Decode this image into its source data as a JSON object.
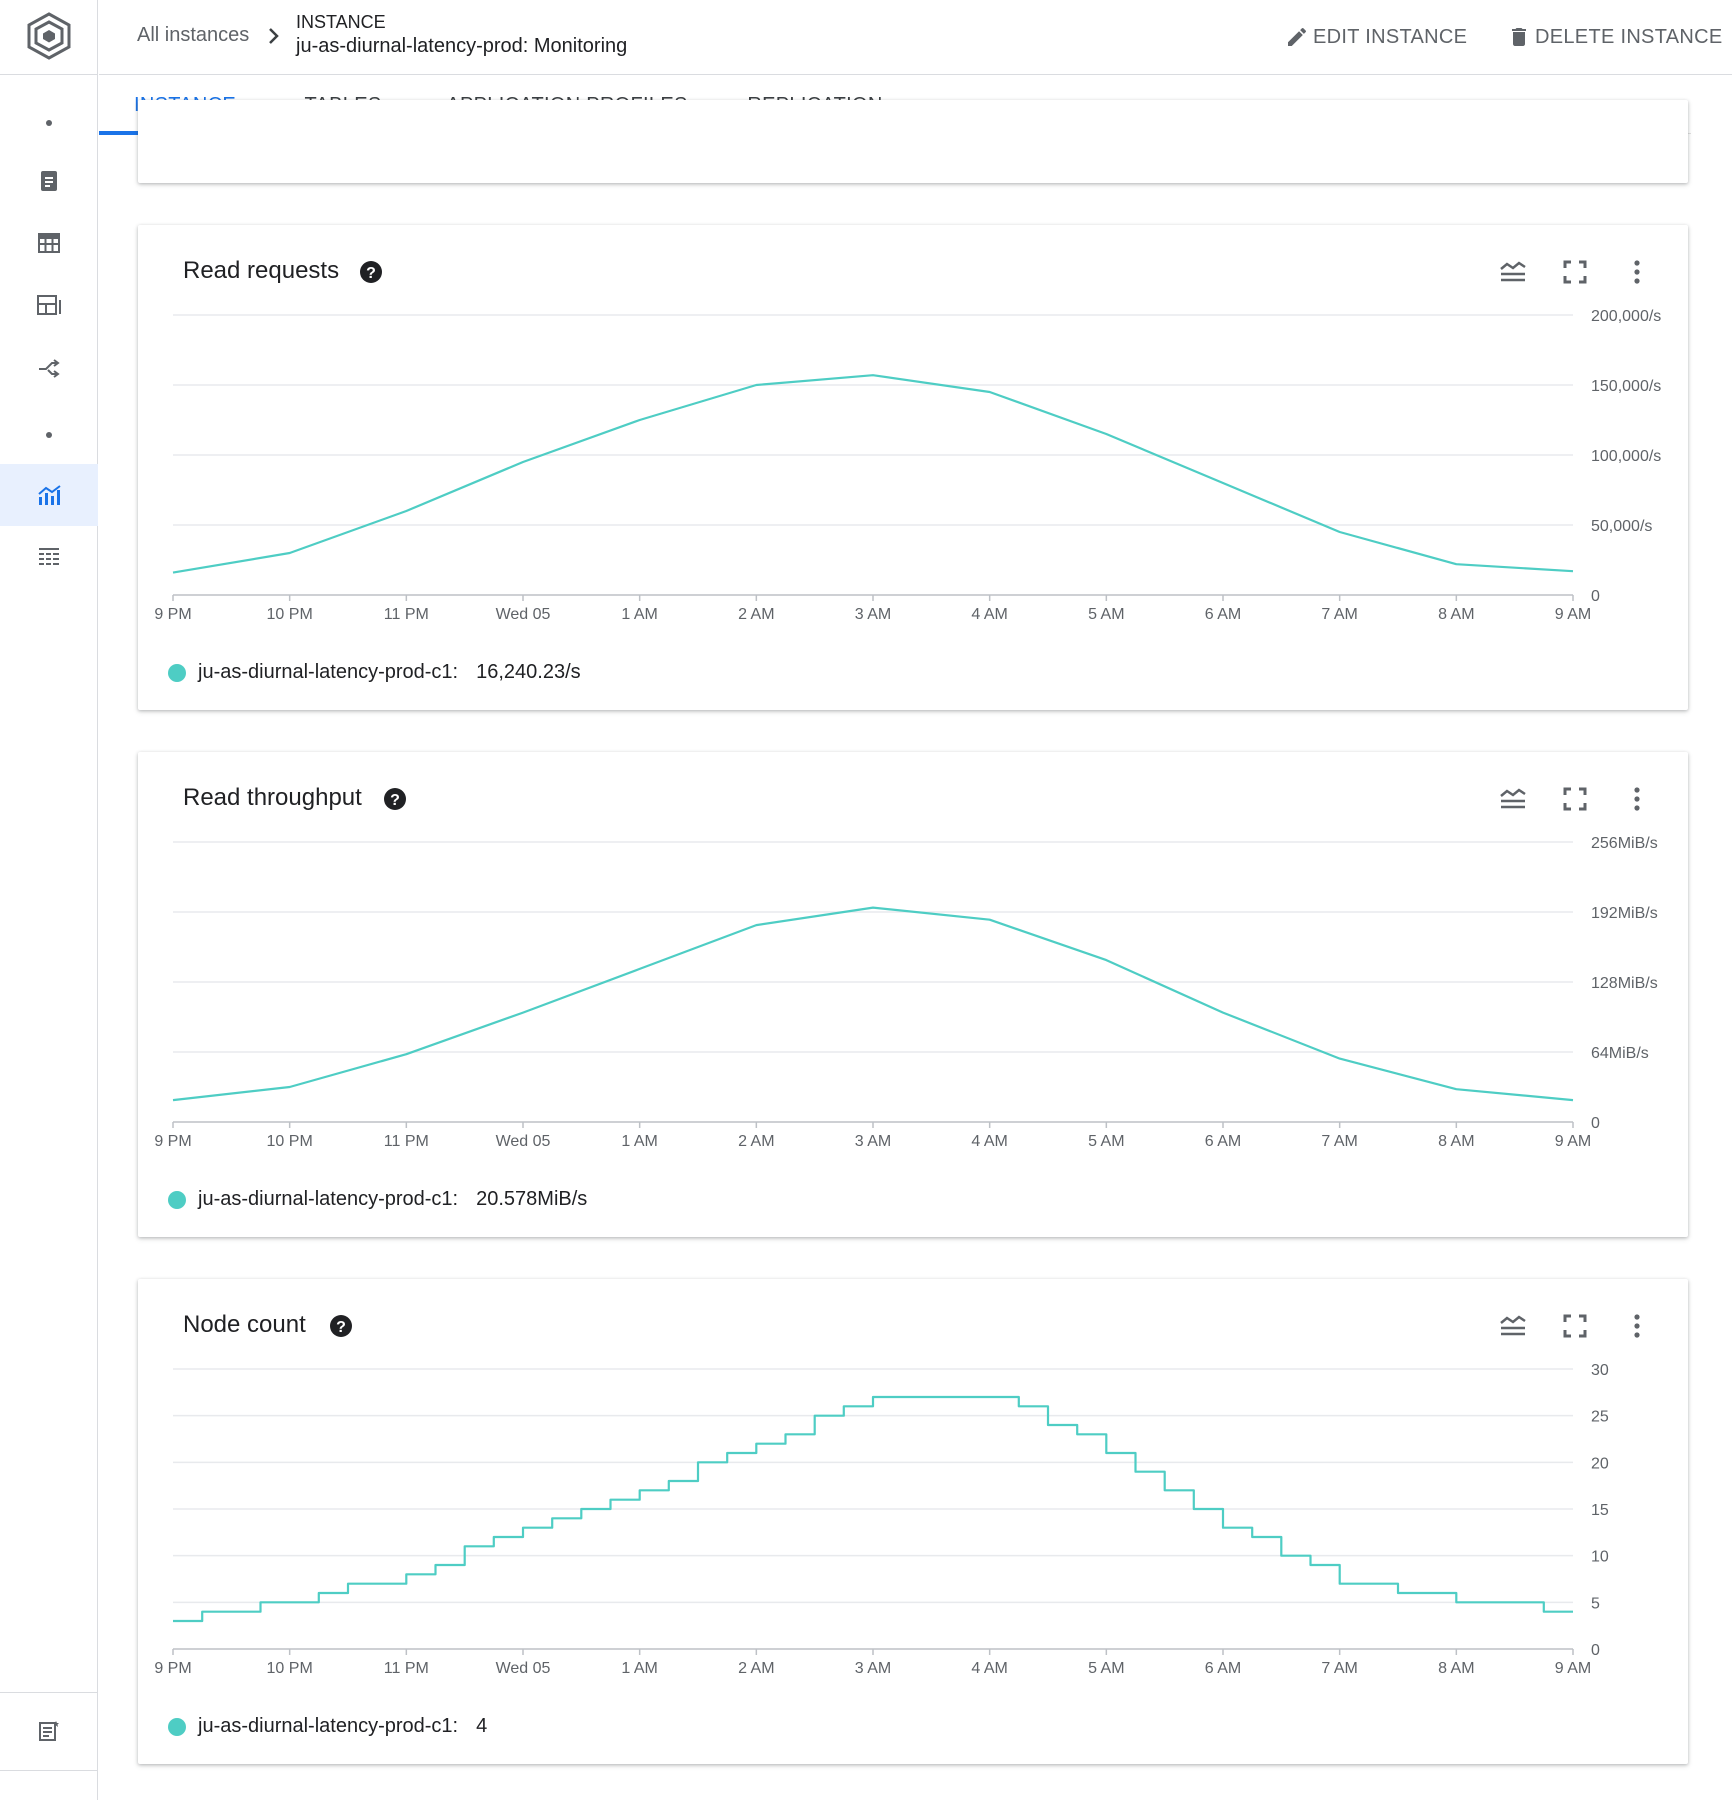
{
  "header": {
    "all_instances": "All instances",
    "kind": "INSTANCE",
    "title": "ju-as-diurnal-latency-prod: Monitoring",
    "edit_label": "EDIT INSTANCE",
    "delete_label": "DELETE INSTANCE"
  },
  "tabs": [
    {
      "label": "INSTANCE",
      "active": true
    },
    {
      "label": "TABLES",
      "active": false
    },
    {
      "label": "APPLICATION PROFILES",
      "active": false
    },
    {
      "label": "REPLICATION",
      "active": false
    }
  ],
  "sidebar": {
    "items": [
      {
        "icon": "dot-icon"
      },
      {
        "icon": "instance-details-icon"
      },
      {
        "icon": "tables-icon"
      },
      {
        "icon": "app-profiles-icon"
      },
      {
        "icon": "replication-icon"
      },
      {
        "icon": "dot-icon"
      },
      {
        "icon": "monitoring-icon",
        "active": true
      },
      {
        "icon": "key-visualizer-icon"
      }
    ],
    "bottom_icon": "release-notes-icon"
  },
  "colors": {
    "accent": "#1a73e8",
    "series": "#4ecdc4",
    "grid": "#e8eaed"
  },
  "charts": [
    {
      "title": "Read requests",
      "legend_name": "ju-as-diurnal-latency-prod-c1:",
      "legend_value": "16,240.23/s"
    },
    {
      "title": "Read throughput",
      "legend_name": "ju-as-diurnal-latency-prod-c1:",
      "legend_value": "20.578MiB/s"
    },
    {
      "title": "Node count",
      "legend_name": "ju-as-diurnal-latency-prod-c1:",
      "legend_value": "4"
    }
  ],
  "chart_data": [
    {
      "type": "line",
      "title": "Read requests",
      "x": [
        "9 PM",
        "10 PM",
        "11 PM",
        "Wed 05",
        "1 AM",
        "2 AM",
        "3 AM",
        "4 AM",
        "5 AM",
        "6 AM",
        "7 AM",
        "8 AM",
        "9 AM"
      ],
      "y_ticks": [
        "0",
        "50,000/s",
        "100,000/s",
        "150,000/s",
        "200,000/s"
      ],
      "ylim": [
        0,
        200000
      ],
      "series": [
        {
          "name": "ju-as-diurnal-latency-prod-c1",
          "values": [
            16000,
            30000,
            60000,
            95000,
            125000,
            150000,
            157000,
            145000,
            115000,
            80000,
            45000,
            22000,
            17000
          ]
        }
      ],
      "grid": true,
      "legend": "bottom-left"
    },
    {
      "type": "line",
      "title": "Read throughput",
      "x": [
        "9 PM",
        "10 PM",
        "11 PM",
        "Wed 05",
        "1 AM",
        "2 AM",
        "3 AM",
        "4 AM",
        "5 AM",
        "6 AM",
        "7 AM",
        "8 AM",
        "9 AM"
      ],
      "y_ticks": [
        "0",
        "64MiB/s",
        "128MiB/s",
        "192MiB/s",
        "256MiB/s"
      ],
      "ylim": [
        0,
        256
      ],
      "series": [
        {
          "name": "ju-as-diurnal-latency-prod-c1",
          "values": [
            20,
            32,
            62,
            100,
            140,
            180,
            196,
            185,
            148,
            100,
            58,
            30,
            20
          ]
        }
      ],
      "grid": true,
      "legend": "bottom-left"
    },
    {
      "type": "line",
      "title": "Node count",
      "x": [
        "9 PM",
        "10 PM",
        "11 PM",
        "Wed 05",
        "1 AM",
        "2 AM",
        "3 AM",
        "4 AM",
        "5 AM",
        "6 AM",
        "7 AM",
        "8 AM",
        "9 AM"
      ],
      "y_ticks": [
        "0",
        "5",
        "10",
        "15",
        "20",
        "25",
        "30"
      ],
      "ylim": [
        0,
        30
      ],
      "series": [
        {
          "name": "ju-as-diurnal-latency-prod-c1",
          "values": [
            3,
            5,
            8,
            13,
            17,
            22,
            27,
            27,
            21,
            13,
            7,
            5,
            4
          ]
        }
      ],
      "grid": true,
      "legend": "bottom-left"
    }
  ]
}
